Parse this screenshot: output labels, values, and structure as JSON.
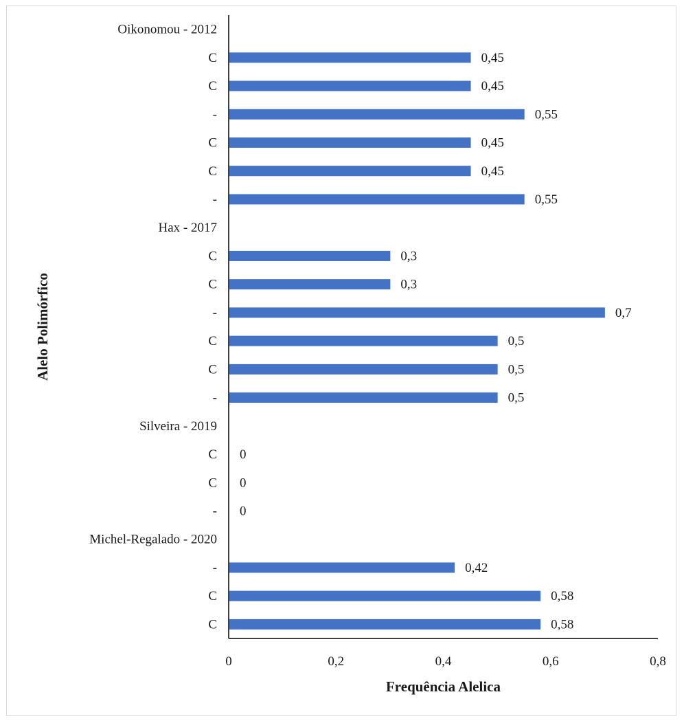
{
  "chart_data": {
    "type": "bar",
    "orientation": "horizontal",
    "xlabel": "Frequência Alelica",
    "ylabel": "Alelo Polimórfico",
    "xlim": [
      0,
      0.8
    ],
    "xticks": [
      "0",
      "0,2",
      "0,4",
      "0,6",
      "0,8"
    ],
    "xtick_values": [
      0,
      0.2,
      0.4,
      0.6,
      0.8
    ],
    "grid": false,
    "legend": "none",
    "categories": [
      "Oikonomou - 2012",
      "C",
      "C",
      "-",
      "C",
      "C",
      "-",
      "Hax - 2017",
      "C",
      "C",
      "-",
      "C",
      "C",
      "-",
      "Silveira - 2019",
      "C",
      "C",
      "-",
      "Michel-Regalado - 2020",
      "-",
      "C",
      "C"
    ],
    "values": [
      null,
      0.45,
      0.45,
      0.55,
      0.45,
      0.45,
      0.55,
      null,
      0.3,
      0.3,
      0.7,
      0.5,
      0.5,
      0.5,
      null,
      0,
      0,
      0,
      null,
      0.42,
      0.58,
      0.58
    ],
    "value_labels": [
      "",
      "0,45",
      "0,45",
      "0,55",
      "0,45",
      "0,45",
      "0,55",
      "",
      "0,3",
      "0,3",
      "0,7",
      "0,5",
      "0,5",
      "0,5",
      "",
      "0",
      "0",
      "0",
      "",
      "0,42",
      "0,58",
      "0,58"
    ],
    "bar_color": "#4472c4"
  }
}
